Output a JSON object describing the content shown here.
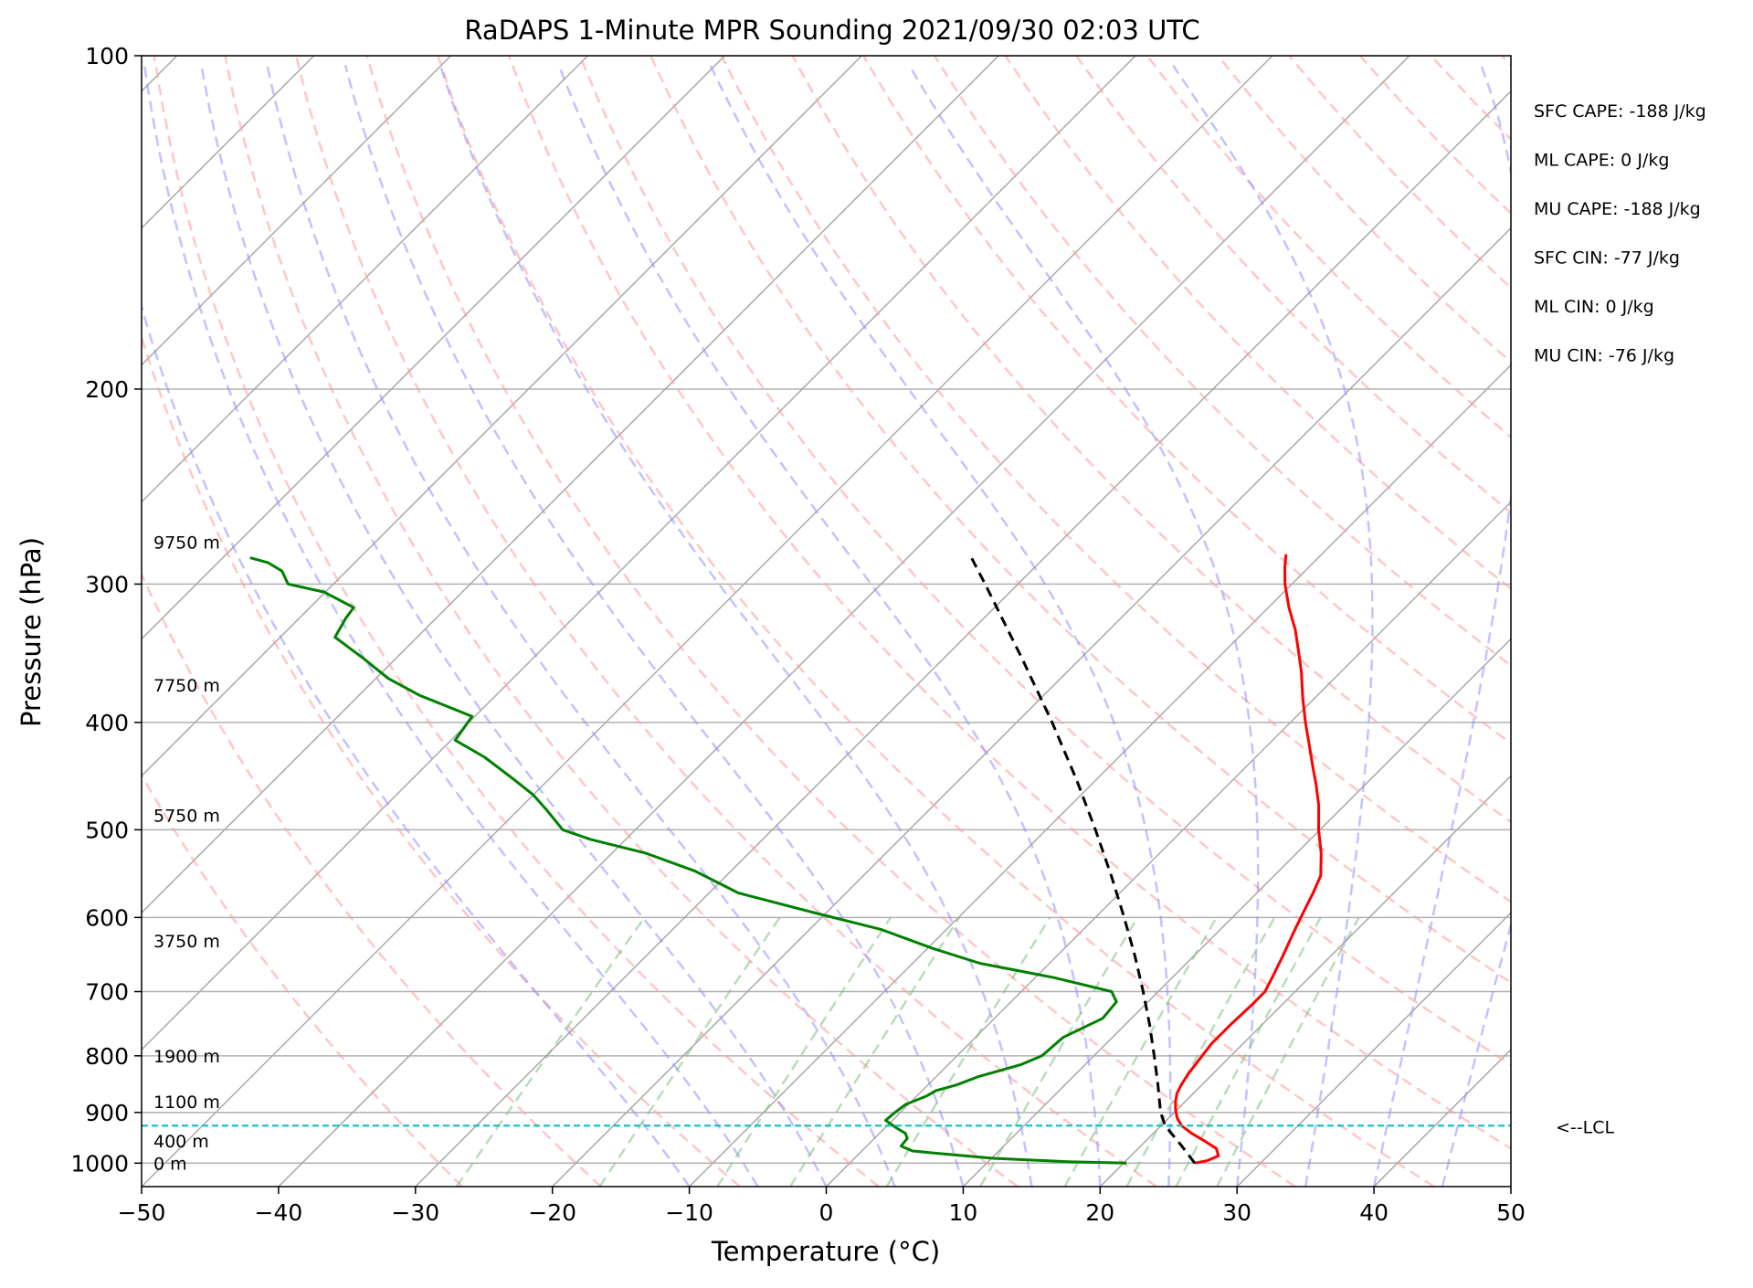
{
  "chart_data": {
    "type": "line",
    "subtype": "skew-t log-p sounding",
    "title": "RaDAPS 1-Minute MPR Sounding 2021/09/30 02:03 UTC",
    "xlabel": "Temperature (°C)",
    "ylabel": "Pressure (hPa)",
    "xlim": [
      -50,
      50
    ],
    "ylim": [
      1050,
      100
    ],
    "y_scale": "log",
    "grid": true,
    "x_ticks": [
      "−50",
      "−40",
      "−30",
      "−20",
      "−10",
      "0",
      "10",
      "20",
      "30",
      "40",
      "50"
    ],
    "y_ticks": [
      "100",
      "200",
      "300",
      "400",
      "500",
      "600",
      "700",
      "800",
      "900",
      "1000"
    ],
    "series": [
      {
        "key": "temperature",
        "color": "#ff0000",
        "points": [
          [
            1000,
            25.2
          ],
          [
            995,
            25.9
          ],
          [
            985,
            26.4
          ],
          [
            970,
            25.7
          ],
          [
            955,
            24.3
          ],
          [
            940,
            22.8
          ],
          [
            925,
            21.5
          ],
          [
            910,
            20.6
          ],
          [
            895,
            19.9
          ],
          [
            880,
            19.3
          ],
          [
            865,
            18.8
          ],
          [
            850,
            18.5
          ],
          [
            830,
            18.2
          ],
          [
            800,
            17.9
          ],
          [
            780,
            17.7
          ],
          [
            750,
            17.7
          ],
          [
            720,
            17.8
          ],
          [
            700,
            17.8
          ],
          [
            680,
            17.3
          ],
          [
            650,
            16.5
          ],
          [
            620,
            15.6
          ],
          [
            600,
            15.0
          ],
          [
            570,
            14.1
          ],
          [
            550,
            13.4
          ],
          [
            525,
            11.8
          ],
          [
            500,
            9.9
          ],
          [
            475,
            8.1
          ],
          [
            455,
            6.4
          ],
          [
            440,
            5.0
          ],
          [
            420,
            3.1
          ],
          [
            400,
            1.1
          ],
          [
            380,
            -0.9
          ],
          [
            360,
            -2.9
          ],
          [
            345,
            -4.6
          ],
          [
            330,
            -6.4
          ],
          [
            315,
            -8.5
          ],
          [
            300,
            -10.5
          ],
          [
            290,
            -11.7
          ],
          [
            282,
            -12.6
          ]
        ]
      },
      {
        "key": "dewpoint",
        "color": "#008000",
        "points": [
          [
            1000,
            20.2
          ],
          [
            997,
            15.8
          ],
          [
            990,
            10.1
          ],
          [
            980,
            5.8
          ],
          [
            975,
            3.7
          ],
          [
            965,
            2.5
          ],
          [
            950,
            2.4
          ],
          [
            940,
            1.9
          ],
          [
            930,
            0.9
          ],
          [
            915,
            -0.5
          ],
          [
            900,
            -0.4
          ],
          [
            885,
            -0.2
          ],
          [
            870,
            0.7
          ],
          [
            860,
            1.0
          ],
          [
            850,
            2.1
          ],
          [
            835,
            3.1
          ],
          [
            815,
            5.3
          ],
          [
            800,
            6.2
          ],
          [
            770,
            6.4
          ],
          [
            740,
            7.9
          ],
          [
            715,
            7.7
          ],
          [
            700,
            6.6
          ],
          [
            680,
            1.4
          ],
          [
            660,
            -5.1
          ],
          [
            640,
            -9.6
          ],
          [
            615,
            -14.8
          ],
          [
            595,
            -20.6
          ],
          [
            570,
            -27.9
          ],
          [
            545,
            -32.6
          ],
          [
            525,
            -37.5
          ],
          [
            510,
            -42.6
          ],
          [
            500,
            -45.3
          ],
          [
            480,
            -47.9
          ],
          [
            465,
            -50.0
          ],
          [
            450,
            -52.6
          ],
          [
            430,
            -56.3
          ],
          [
            415,
            -59.7
          ],
          [
            395,
            -60.2
          ],
          [
            378,
            -65.6
          ],
          [
            365,
            -69.1
          ],
          [
            350,
            -72.4
          ],
          [
            335,
            -76.0
          ],
          [
            322,
            -76.6
          ],
          [
            315,
            -76.8
          ],
          [
            305,
            -80.1
          ],
          [
            300,
            -83.3
          ],
          [
            292,
            -84.7
          ],
          [
            287,
            -86.3
          ],
          [
            284,
            -88.0
          ]
        ]
      },
      {
        "key": "parcel_profile",
        "color": "#000000",
        "dashed": true,
        "points": [
          [
            1000,
            25.2
          ],
          [
            965,
            23.0
          ],
          [
            925,
            20.3
          ],
          [
            900,
            19.0
          ],
          [
            850,
            16.8
          ],
          [
            800,
            14.4
          ],
          [
            750,
            11.8
          ],
          [
            700,
            8.9
          ],
          [
            650,
            5.7
          ],
          [
            600,
            2.1
          ],
          [
            550,
            -1.9
          ],
          [
            500,
            -6.4
          ],
          [
            450,
            -11.5
          ],
          [
            400,
            -17.4
          ],
          [
            350,
            -24.3
          ],
          [
            300,
            -32.4
          ],
          [
            282,
            -35.7
          ]
        ]
      }
    ],
    "lcl": {
      "pressure": 925,
      "label": "<--LCL",
      "color": "#00bfbf"
    },
    "height_labels": [
      {
        "text": "0 m",
        "pressure": 1000
      },
      {
        "text": "400 m",
        "pressure": 955
      },
      {
        "text": "1100 m",
        "pressure": 880
      },
      {
        "text": "1900 m",
        "pressure": 800
      },
      {
        "text": "3750 m",
        "pressure": 630
      },
      {
        "text": "5750 m",
        "pressure": 485
      },
      {
        "text": "7750 m",
        "pressure": 370
      },
      {
        "text": "9750 m",
        "pressure": 275
      }
    ],
    "stats": [
      "SFC CAPE: -188 J/kg",
      "ML CAPE: 0 J/kg",
      "MU CAPE: -188 J/kg",
      "SFC CIN: -77 J/kg",
      "ML CIN: 0 J/kg",
      "MU CIN: -76 J/kg"
    ],
    "reference_lines": {
      "isotherms": {
        "color": "#000000",
        "values": [
          -160,
          -150,
          -140,
          -130,
          -120,
          -110,
          -100,
          -90,
          -80,
          -70,
          -60,
          -50,
          -40,
          -30,
          -20,
          -10,
          0,
          10,
          20,
          30,
          40,
          50
        ]
      },
      "dry_adiabats_theta_c": {
        "color": "#ff0000",
        "values": [
          -30,
          -20,
          -10,
          0,
          10,
          20,
          30,
          40,
          50,
          60,
          70,
          80,
          90,
          100,
          110,
          120,
          130,
          140,
          150,
          160,
          170,
          180,
          190,
          200
        ]
      },
      "moist_adiabats_start_c": {
        "color": "#0000ff",
        "values": [
          -10,
          -5,
          0,
          5,
          10,
          15,
          20,
          25,
          30,
          35,
          40,
          45
        ]
      },
      "mixing_ratio_g_per_kg": {
        "color": "#008000",
        "values": [
          0.4,
          1,
          2,
          3,
          5,
          8,
          12,
          16,
          20,
          24
        ]
      }
    }
  }
}
